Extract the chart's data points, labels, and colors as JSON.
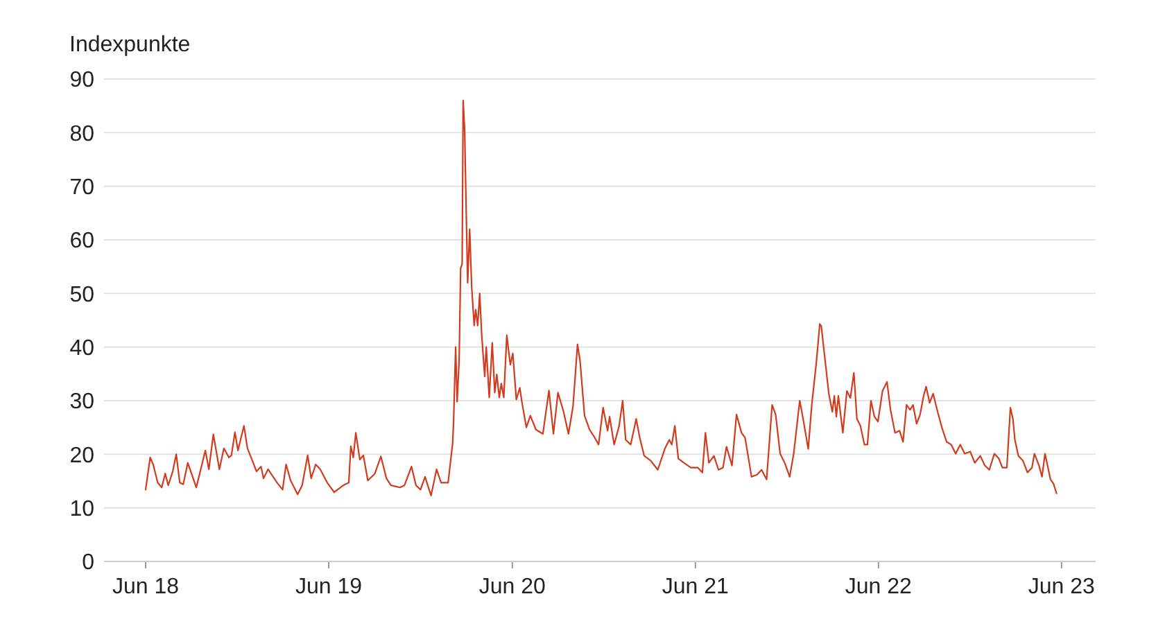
{
  "chart_data": {
    "type": "line",
    "ylabel": "Indexpunkte",
    "xlim": [
      "2018-03-10",
      "2023-08-08"
    ],
    "xticks": [
      {
        "value": "2018-06-01",
        "label": "Jun 18"
      },
      {
        "value": "2019-06-01",
        "label": "Jun 19"
      },
      {
        "value": "2020-06-01",
        "label": "Jun 20"
      },
      {
        "value": "2021-06-01",
        "label": "Jun 21"
      },
      {
        "value": "2022-06-01",
        "label": "Jun 22"
      },
      {
        "value": "2023-06-01",
        "label": "Jun 23"
      }
    ],
    "ylim": [
      0,
      90
    ],
    "yticks": [
      0,
      10,
      20,
      30,
      40,
      50,
      60,
      70,
      80,
      90
    ],
    "grid": "y",
    "marker": "none",
    "line_style": "solid",
    "series": [
      {
        "color": "#d13b1e",
        "x": [
          "2018-06-01",
          "2018-06-10",
          "2018-06-16",
          "2018-06-25",
          "2018-07-03",
          "2018-07-10",
          "2018-07-16",
          "2018-07-25",
          "2018-08-01",
          "2018-08-08",
          "2018-08-15",
          "2018-08-24",
          "2018-09-10",
          "2018-09-28",
          "2018-10-05",
          "2018-10-14",
          "2018-10-26",
          "2018-11-04",
          "2018-11-14",
          "2018-11-19",
          "2018-11-26",
          "2018-12-02",
          "2018-12-14",
          "2018-12-21",
          "2018-12-30",
          "2019-01-08",
          "2019-01-17",
          "2019-01-22",
          "2019-01-31",
          "2019-02-18",
          "2019-03-01",
          "2019-03-08",
          "2019-03-17",
          "2019-03-31",
          "2019-04-09",
          "2019-04-20",
          "2019-04-27",
          "2019-05-06",
          "2019-05-15",
          "2019-05-29",
          "2019-06-12",
          "2019-06-30",
          "2019-07-11",
          "2019-07-15",
          "2019-07-20",
          "2019-07-25",
          "2019-08-02",
          "2019-08-09",
          "2019-08-18",
          "2019-09-01",
          "2019-09-13",
          "2019-09-24",
          "2019-10-03",
          "2019-10-21",
          "2019-10-30",
          "2019-11-13",
          "2019-11-22",
          "2019-12-01",
          "2019-12-10",
          "2019-12-22",
          "2020-01-02",
          "2020-01-11",
          "2020-01-25",
          "2020-02-03",
          "2020-02-05",
          "2020-02-09",
          "2020-02-12",
          "2020-02-16",
          "2020-02-19",
          "2020-02-22",
          "2020-02-24",
          "2020-02-27",
          "2020-03-01",
          "2020-03-04",
          "2020-03-08",
          "2020-03-12",
          "2020-03-17",
          "2020-03-20",
          "2020-03-24",
          "2020-03-28",
          "2020-04-01",
          "2020-04-07",
          "2020-04-10",
          "2020-04-16",
          "2020-04-22",
          "2020-04-27",
          "2020-05-01",
          "2020-05-06",
          "2020-05-10",
          "2020-05-15",
          "2020-05-21",
          "2020-05-28",
          "2020-06-02",
          "2020-06-09",
          "2020-06-16",
          "2020-06-20",
          "2020-06-29",
          "2020-07-07",
          "2020-07-18",
          "2020-08-01",
          "2020-08-13",
          "2020-08-22",
          "2020-08-31",
          "2020-09-11",
          "2020-09-21",
          "2020-09-30",
          "2020-10-09",
          "2020-10-14",
          "2020-10-23",
          "2020-11-02",
          "2020-11-11",
          "2020-11-20",
          "2020-11-29",
          "2020-12-08",
          "2020-12-12",
          "2020-12-21",
          "2020-12-31",
          "2021-01-07",
          "2021-01-13",
          "2021-01-23",
          "2021-02-03",
          "2021-02-10",
          "2021-02-19",
          "2021-03-04",
          "2021-03-18",
          "2021-04-01",
          "2021-04-10",
          "2021-04-15",
          "2021-04-21",
          "2021-04-28",
          "2021-05-09",
          "2021-05-23",
          "2021-06-06",
          "2021-06-15",
          "2021-06-21",
          "2021-06-28",
          "2021-07-08",
          "2021-07-17",
          "2021-07-26",
          "2021-08-02",
          "2021-08-13",
          "2021-08-22",
          "2021-09-01",
          "2021-09-08",
          "2021-09-21",
          "2021-10-02",
          "2021-10-11",
          "2021-10-21",
          "2021-11-01",
          "2021-11-08",
          "2021-11-17",
          "2021-11-26",
          "2021-12-06",
          "2021-12-14",
          "2021-12-26",
          "2022-01-01",
          "2022-01-12",
          "2022-01-19",
          "2022-01-28",
          "2022-02-04",
          "2022-02-07",
          "2022-02-22",
          "2022-03-01",
          "2022-03-05",
          "2022-03-09",
          "2022-03-13",
          "2022-03-22",
          "2022-03-30",
          "2022-04-06",
          "2022-04-13",
          "2022-04-19",
          "2022-04-26",
          "2022-05-04",
          "2022-05-10",
          "2022-05-17",
          "2022-05-24",
          "2022-05-31",
          "2022-06-09",
          "2022-06-18",
          "2022-06-25",
          "2022-07-04",
          "2022-07-13",
          "2022-07-20",
          "2022-07-27",
          "2022-08-03",
          "2022-08-09",
          "2022-08-16",
          "2022-08-23",
          "2022-08-30",
          "2022-09-04",
          "2022-09-11",
          "2022-09-18",
          "2022-09-27",
          "2022-10-06",
          "2022-10-15",
          "2022-10-24",
          "2022-11-02",
          "2022-11-11",
          "2022-11-20",
          "2022-12-01",
          "2022-12-10",
          "2022-12-21",
          "2022-12-30",
          "2023-01-08",
          "2023-01-18",
          "2023-01-27",
          "2023-02-03",
          "2023-02-12",
          "2023-02-19",
          "2023-02-24",
          "2023-02-28",
          "2023-03-07",
          "2023-03-16",
          "2023-03-25",
          "2023-04-03",
          "2023-04-08",
          "2023-04-17",
          "2023-04-23",
          "2023-04-29",
          "2023-05-05",
          "2023-05-10",
          "2023-05-16",
          "2023-05-22"
        ],
        "values": [
          13.4,
          19.4,
          18.1,
          14.7,
          13.8,
          16.4,
          14.2,
          16.8,
          20,
          14.7,
          14.4,
          18.4,
          13.8,
          20.7,
          17.2,
          23.7,
          17.2,
          21.1,
          19.4,
          19.8,
          24.1,
          20.7,
          25.3,
          21.1,
          19,
          16.8,
          17.7,
          15.5,
          17.2,
          14.7,
          13.4,
          18.1,
          15.1,
          12.5,
          14.2,
          19.8,
          15.5,
          18.1,
          17.2,
          14.7,
          12.9,
          14.2,
          14.7,
          21.5,
          19.4,
          24,
          19,
          19.8,
          15.1,
          16.4,
          19.6,
          15.5,
          14.2,
          13.8,
          14.2,
          17.7,
          14.2,
          13.4,
          15.8,
          12.3,
          17.2,
          14.7,
          14.7,
          22,
          26.3,
          40,
          29.8,
          37.5,
          54.7,
          55.5,
          86,
          80.4,
          65.8,
          52,
          62,
          51.2,
          44,
          47,
          44,
          50,
          42.2,
          34.5,
          40,
          30.6,
          40.8,
          31.5,
          34.9,
          30.6,
          33.2,
          30.6,
          42.2,
          36.7,
          38.8,
          30.2,
          32.4,
          29.8,
          25,
          27.2,
          24.6,
          23.8,
          31.9,
          23.8,
          31.5,
          28,
          23.8,
          28.9,
          40.5,
          37.5,
          27.2,
          24.6,
          23.3,
          21.8,
          28.7,
          24.4,
          27,
          21.8,
          25.3,
          30,
          22.7,
          21.8,
          26.6,
          23.1,
          19.7,
          18.8,
          17.1,
          21,
          22.7,
          21.8,
          25.3,
          19.2,
          18.4,
          17.5,
          17.5,
          16.6,
          24,
          18.4,
          19.7,
          17.1,
          17.5,
          21.4,
          17.9,
          27.4,
          24,
          23.1,
          15.8,
          16.2,
          17.1,
          15.3,
          29.2,
          27.4,
          20.1,
          18.4,
          15.8,
          20.1,
          30,
          27,
          21,
          29.2,
          37,
          44.3,
          43.9,
          31.3,
          27.9,
          30.9,
          27,
          30.9,
          24,
          31.8,
          30.5,
          35.2,
          26.6,
          25.3,
          21.8,
          21.8,
          30,
          27,
          26.1,
          31.8,
          33.5,
          28.3,
          24,
          24.4,
          22.3,
          29.2,
          28.3,
          29.2,
          25.7,
          27.4,
          30.9,
          32.6,
          29.6,
          31.3,
          27.9,
          24.8,
          22.3,
          21.8,
          20.1,
          21.8,
          20.1,
          20.5,
          18.4,
          19.7,
          17.9,
          17.1,
          20.1,
          19.2,
          17.5,
          17.5,
          28.7,
          26.6,
          22.7,
          19.7,
          18.8,
          16.6,
          17.5,
          20.1,
          17.9,
          15.8,
          20.1,
          17.5,
          15.3,
          14.5,
          12.7
        ]
      }
    ]
  }
}
